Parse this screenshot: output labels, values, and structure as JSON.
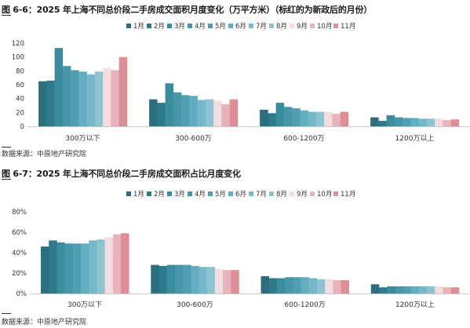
{
  "figures": [
    {
      "title": "图 6-6：2025 年上海不同总价段二手房成交面积月度变化（万平方米）（标红的为新政后的月份）",
      "source": "数据来源：中原地产研究院"
    },
    {
      "title": "图 6-7：2025 年上海不同总价段二手房成交面积占比月度变化",
      "source": "数据来源：中原地产研究院"
    }
  ],
  "colors": [
    "#2d6e7e",
    "#2f7a8a",
    "#3a8d9e",
    "#4596a6",
    "#509fb0",
    "#62adbf",
    "#75b8c9",
    "#8cc4d2",
    "#f3dde0",
    "#e9b4b9",
    "#dc8f96"
  ],
  "chart_data": [
    {
      "type": "bar",
      "title": "",
      "xlabel": "",
      "ylabel": "",
      "categories": [
        "300万以下",
        "300-600万",
        "600-1200万",
        "1200万以上"
      ],
      "ylim": [
        0,
        120
      ],
      "yticks": [
        "0",
        "20",
        "40",
        "60",
        "80",
        "100",
        "120"
      ],
      "ytick_values": [
        0,
        20,
        40,
        60,
        80,
        100,
        120
      ],
      "grid": false,
      "legend_position": "top",
      "series": [
        {
          "name": "1月",
          "values": [
            65,
            39,
            24,
            13
          ]
        },
        {
          "name": "2月",
          "values": [
            66,
            34,
            19,
            8
          ]
        },
        {
          "name": "3月",
          "values": [
            113,
            62,
            34,
            16
          ]
        },
        {
          "name": "4月",
          "values": [
            87,
            49,
            28,
            13
          ]
        },
        {
          "name": "5月",
          "values": [
            81,
            45,
            26,
            12
          ]
        },
        {
          "name": "6月",
          "values": [
            79,
            44,
            23,
            12
          ]
        },
        {
          "name": "7月",
          "values": [
            75,
            38,
            21,
            11
          ]
        },
        {
          "name": "8月",
          "values": [
            79,
            39,
            21,
            11
          ]
        },
        {
          "name": "9月",
          "values": [
            84,
            37,
            21,
            11
          ]
        },
        {
          "name": "10月",
          "values": [
            81,
            32,
            18,
            9
          ]
        },
        {
          "name": "11月",
          "values": [
            100,
            39,
            21,
            10
          ]
        }
      ]
    },
    {
      "type": "bar",
      "title": "",
      "xlabel": "",
      "ylabel": "",
      "categories": [
        "300万以下",
        "300-600万",
        "600-1200万",
        "1200万以上"
      ],
      "ylim": [
        0,
        80
      ],
      "yticks": [
        "0%",
        "20%",
        "40%",
        "60%",
        "80%"
      ],
      "ytick_values": [
        0,
        20,
        40,
        60,
        80
      ],
      "grid": false,
      "legend_position": "top",
      "series": [
        {
          "name": "1月",
          "values": [
            46,
            28,
            17,
            9
          ]
        },
        {
          "name": "2月",
          "values": [
            52,
            27,
            15,
            6
          ]
        },
        {
          "name": "3月",
          "values": [
            50,
            28,
            15,
            7
          ]
        },
        {
          "name": "4月",
          "values": [
            49,
            28,
            16,
            7
          ]
        },
        {
          "name": "5月",
          "values": [
            49,
            28,
            16,
            7
          ]
        },
        {
          "name": "6月",
          "values": [
            49,
            27,
            16,
            7
          ]
        },
        {
          "name": "7月",
          "values": [
            52,
            26,
            15,
            7
          ]
        },
        {
          "name": "8月",
          "values": [
            53,
            26,
            14,
            7
          ]
        },
        {
          "name": "9月",
          "values": [
            55,
            24,
            14,
            7
          ]
        },
        {
          "name": "10月",
          "values": [
            58,
            23,
            13,
            6
          ]
        },
        {
          "name": "11月",
          "values": [
            59,
            23,
            13,
            6
          ]
        }
      ]
    }
  ]
}
